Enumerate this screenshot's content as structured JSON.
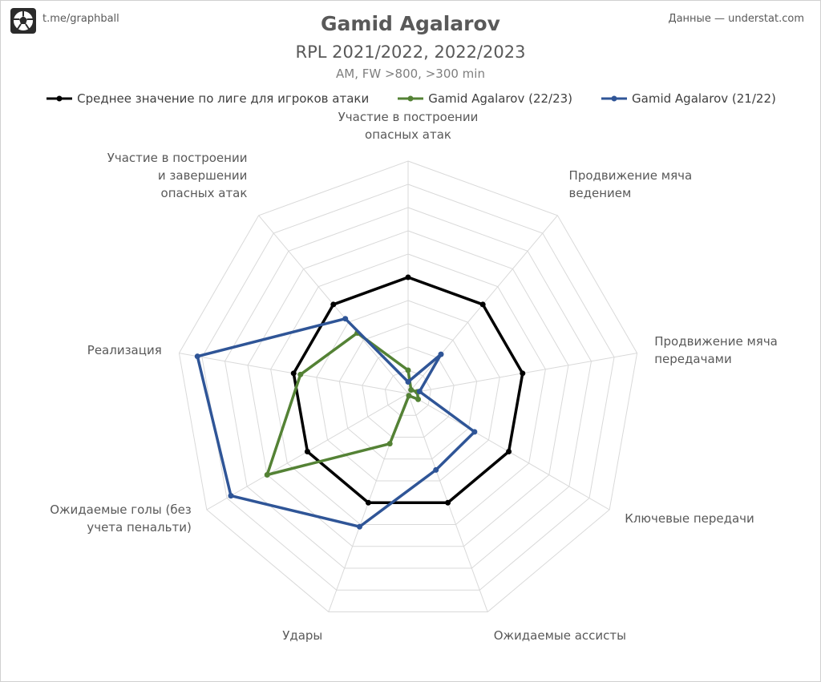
{
  "header": {
    "source_left": "t.me/graphball",
    "source_right": "Данные — understat.com",
    "title": "Gamid Agalarov",
    "subtitle": "RPL 2021/2022, 2022/2023",
    "subtitle2": "AM, FW >800, >300 min"
  },
  "icons": {
    "logo": "football-logo-icon"
  },
  "chart_data": {
    "type": "radar",
    "axes": [
      "Участие в построении\nопасных атак",
      "Продвижение мяча\nведением",
      "Продвижение мяча\nпередачами",
      "Ключевые передачи",
      "Ожидаемые ассисты",
      "Удары",
      "Ожидаемые голы (без\nучета пенальти)",
      "Реализация",
      "Участие в построении\nи завершении\nопасных атак"
    ],
    "rmax": 100,
    "rings": 10,
    "grid": true,
    "legend": "top",
    "series": [
      {
        "name": "Среднее значение по лиге для игроков атаки",
        "color": "#000000",
        "values": [
          50,
          50,
          50,
          50,
          50,
          50,
          50,
          50,
          50
        ]
      },
      {
        "name": "Gamid Agalarov (22/23)",
        "color": "#548235",
        "values": [
          10,
          2,
          4,
          5,
          1,
          23,
          70,
          47,
          34
        ]
      },
      {
        "name": "Gamid Agalarov (21/22)",
        "color": "#2f5597",
        "values": [
          5,
          22,
          5,
          33,
          35,
          61,
          88,
          92,
          42
        ]
      }
    ]
  }
}
